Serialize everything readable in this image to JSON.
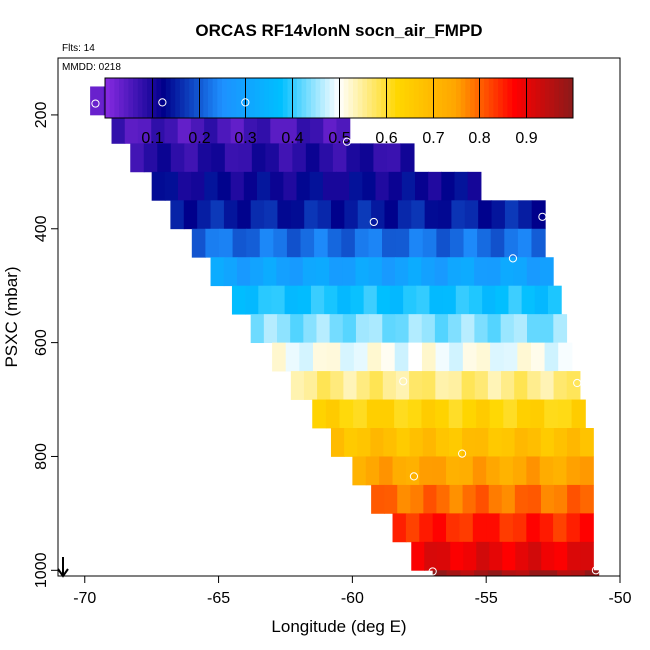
{
  "chart_data": {
    "type": "heatmap",
    "title": "ORCAS RF14vlonN socn_air_FMPD",
    "flts_label": "Flts: 14",
    "mmdd_label": "MMDD: 0218",
    "xlabel": "Longitude (deg E)",
    "ylabel": "PSXC (mbar)",
    "xlim": [
      -71,
      -50
    ],
    "ylim": [
      1010,
      100
    ],
    "x_ticks": [
      -70,
      -65,
      -60,
      -55,
      -50
    ],
    "x_tick_labels": [
      "-70",
      "-65",
      "-60",
      "-55",
      "-50"
    ],
    "y_ticks": [
      200,
      400,
      600,
      800,
      1000
    ],
    "y_tick_labels": [
      "200",
      "400",
      "600",
      "800",
      "1000"
    ],
    "colorbar_ticks": [
      0.1,
      0.2,
      0.3,
      0.4,
      0.5,
      0.6,
      0.7,
      0.8,
      0.9
    ],
    "colorbar_tick_labels": [
      "0.1",
      "0.2",
      "0.3",
      "0.4",
      "0.5",
      "0.6",
      "0.7",
      "0.8",
      "0.9"
    ],
    "colorbar_range": [
      0,
      1
    ],
    "colormap": [
      "#8a2be2",
      "#00008b",
      "#1e90ff",
      "#00bfff",
      "#ffffff",
      "#ffd700",
      "#ffa500",
      "#ff0000",
      "#8b1a1a"
    ],
    "bin_width_lon": 0.5,
    "bin_height_p": 50,
    "bands": [
      {
        "p": 175,
        "lon_start": -69.8,
        "lon_end": -63.8,
        "value": 0.03
      },
      {
        "p": 225,
        "lon_start": -69.0,
        "lon_end": -60.1,
        "value": 0.06
      },
      {
        "p": 275,
        "lon_start": -68.3,
        "lon_end": -57.7,
        "value": 0.09
      },
      {
        "p": 325,
        "lon_start": -67.5,
        "lon_end": -55.2,
        "value": 0.12
      },
      {
        "p": 375,
        "lon_start": -66.8,
        "lon_end": -52.8,
        "value": 0.15
      },
      {
        "p": 425,
        "lon_start": -66.0,
        "lon_end": -52.8,
        "value": 0.22
      },
      {
        "p": 475,
        "lon_start": -65.3,
        "lon_end": -52.5,
        "value": 0.3
      },
      {
        "p": 525,
        "lon_start": -64.5,
        "lon_end": -52.2,
        "value": 0.38
      },
      {
        "p": 575,
        "lon_start": -63.8,
        "lon_end": -52.0,
        "value": 0.44
      },
      {
        "p": 625,
        "lon_start": -63.0,
        "lon_end": -51.8,
        "value": 0.5
      },
      {
        "p": 675,
        "lon_start": -62.3,
        "lon_end": -51.5,
        "value": 0.56
      },
      {
        "p": 725,
        "lon_start": -61.5,
        "lon_end": -51.3,
        "value": 0.63
      },
      {
        "p": 775,
        "lon_start": -60.8,
        "lon_end": -51.0,
        "value": 0.68
      },
      {
        "p": 825,
        "lon_start": -60.0,
        "lon_end": -51.0,
        "value": 0.74
      },
      {
        "p": 875,
        "lon_start": -59.3,
        "lon_end": -51.0,
        "value": 0.79
      },
      {
        "p": 925,
        "lon_start": -58.5,
        "lon_end": -51.0,
        "value": 0.85
      },
      {
        "p": 975,
        "lon_start": -57.8,
        "lon_end": -51.0,
        "value": 0.9
      },
      {
        "p": 1025,
        "lon_start": -57.0,
        "lon_end": -50.8,
        "value": 0.97
      }
    ],
    "points": [
      {
        "lon": -69.6,
        "p": 180
      },
      {
        "lon": -67.1,
        "p": 178
      },
      {
        "lon": -64.0,
        "p": 178
      },
      {
        "lon": -60.2,
        "p": 247
      },
      {
        "lon": -59.2,
        "p": 388
      },
      {
        "lon": -52.9,
        "p": 379
      },
      {
        "lon": -54.0,
        "p": 452
      },
      {
        "lon": -58.1,
        "p": 668
      },
      {
        "lon": -51.6,
        "p": 671
      },
      {
        "lon": -55.9,
        "p": 795
      },
      {
        "lon": -57.7,
        "p": 835
      },
      {
        "lon": -57.0,
        "p": 1002
      },
      {
        "lon": -50.9,
        "p": 1000
      }
    ]
  }
}
